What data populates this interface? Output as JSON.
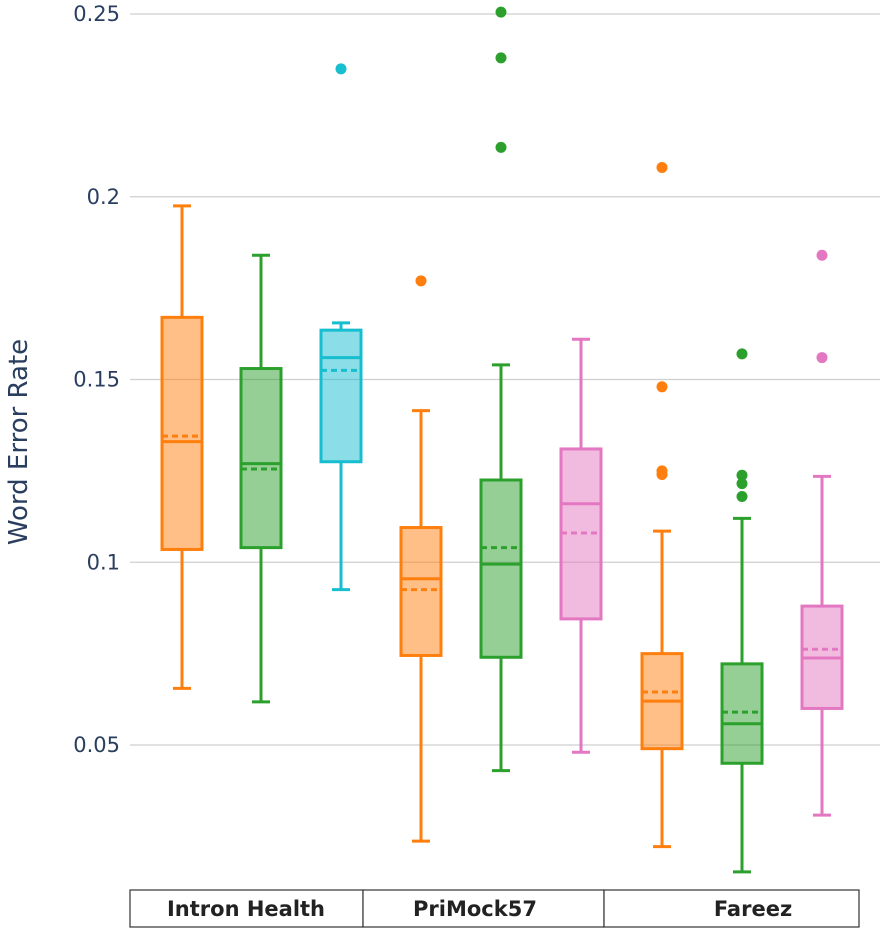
{
  "chart_data": {
    "type": "box",
    "ylabel": "Word Error Rate",
    "ylim": [
      0.015,
      0.253
    ],
    "yticks": [
      0.05,
      0.1,
      0.15,
      0.2,
      0.25
    ],
    "ytick_labels": [
      "0.05",
      "0.1",
      "0.15",
      "0.2",
      "0.25"
    ],
    "groups": [
      "Intron Health",
      "PriMock57",
      "Fareez"
    ],
    "series_colors": {
      "orange": "#ff7f0e",
      "green": "#2ca02c",
      "cyan": "#17becf",
      "pink": "#e377c2"
    },
    "boxes": [
      {
        "group": "Intron Health",
        "series": "orange",
        "min": 0.0655,
        "q1": 0.1035,
        "median": 0.133,
        "mean": 0.1345,
        "q3": 0.167,
        "max": 0.1975,
        "outliers": []
      },
      {
        "group": "Intron Health",
        "series": "green",
        "min": 0.0618,
        "q1": 0.104,
        "median": 0.127,
        "mean": 0.1255,
        "q3": 0.153,
        "max": 0.184,
        "outliers": []
      },
      {
        "group": "Intron Health",
        "series": "cyan",
        "min": 0.0925,
        "q1": 0.1275,
        "median": 0.156,
        "mean": 0.1525,
        "q3": 0.1635,
        "max": 0.1655,
        "outliers": [
          0.235
        ]
      },
      {
        "group": "PriMock57",
        "series": "orange",
        "min": 0.0237,
        "q1": 0.0745,
        "median": 0.0955,
        "mean": 0.0925,
        "q3": 0.1095,
        "max": 0.1415,
        "outliers": [
          0.177
        ]
      },
      {
        "group": "PriMock57",
        "series": "green",
        "min": 0.043,
        "q1": 0.074,
        "median": 0.0995,
        "mean": 0.104,
        "q3": 0.1225,
        "max": 0.154,
        "outliers": [
          0.2135,
          0.238,
          0.2505
        ]
      },
      {
        "group": "PriMock57",
        "series": "pink",
        "min": 0.048,
        "q1": 0.0845,
        "median": 0.116,
        "mean": 0.108,
        "q3": 0.131,
        "max": 0.161,
        "outliers": []
      },
      {
        "group": "Fareez",
        "series": "orange",
        "min": 0.0222,
        "q1": 0.049,
        "median": 0.062,
        "mean": 0.0645,
        "q3": 0.075,
        "max": 0.1085,
        "outliers": [
          0.124,
          0.125,
          0.148,
          0.208
        ]
      },
      {
        "group": "Fareez",
        "series": "green",
        "min": 0.0153,
        "q1": 0.045,
        "median": 0.0558,
        "mean": 0.059,
        "q3": 0.0722,
        "max": 0.112,
        "outliers": [
          0.118,
          0.1215,
          0.1238,
          0.157
        ]
      },
      {
        "group": "Fareez",
        "series": "pink",
        "min": 0.0308,
        "q1": 0.06,
        "median": 0.0738,
        "mean": 0.0762,
        "q3": 0.088,
        "max": 0.1235,
        "outliers": [
          0.156,
          0.184
        ]
      }
    ]
  }
}
